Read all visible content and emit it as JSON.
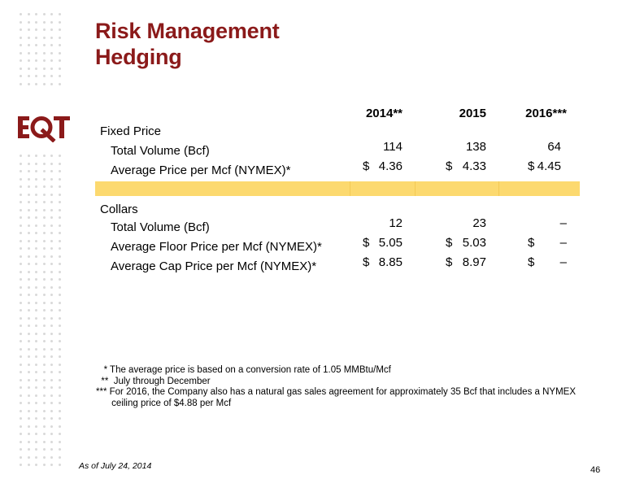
{
  "title": {
    "line1": "Risk Management",
    "line2": "Hedging"
  },
  "logo": {
    "text": "EQT",
    "color": "#8b1a1a"
  },
  "table": {
    "headers": [
      "2014**",
      "2015",
      "2016***"
    ],
    "fixed_price": {
      "label": "Fixed Price",
      "total_volume": {
        "label": "Total Volume (Bcf)",
        "values": [
          "114",
          "138",
          "64"
        ]
      },
      "avg_price": {
        "label": "Average Price per Mcf (NYMEX)*",
        "currency": [
          "$",
          "$",
          "$"
        ],
        "values": [
          "4.36",
          "4.33",
          "4.45"
        ]
      }
    },
    "collars": {
      "label": "Collars",
      "total_volume": {
        "label": "Total Volume (Bcf)",
        "values": [
          "12",
          "23",
          "–"
        ]
      },
      "avg_floor": {
        "label": "Average Floor Price per Mcf (NYMEX)*",
        "currency": [
          "$",
          "$",
          "$"
        ],
        "values": [
          "5.05",
          "5.03",
          "–"
        ]
      },
      "avg_cap": {
        "label": "Average Cap Price per Mcf (NYMEX)*",
        "currency": [
          "$",
          "$",
          "$"
        ],
        "values": [
          "8.85",
          "8.97",
          "–"
        ]
      }
    },
    "highlight_color": "#fcd96f"
  },
  "footnotes": [
    "   * The average price is based on a conversion rate of 1.05 MMBtu/Mcf",
    "  **  July through December",
    "*** For 2016, the Company also has a natural gas sales agreement for approximately 35 Bcf that includes a NYMEX",
    "      ceiling price of $4.88 per Mcf"
  ],
  "as_of": "As of July 24, 2014",
  "page_number": "46"
}
